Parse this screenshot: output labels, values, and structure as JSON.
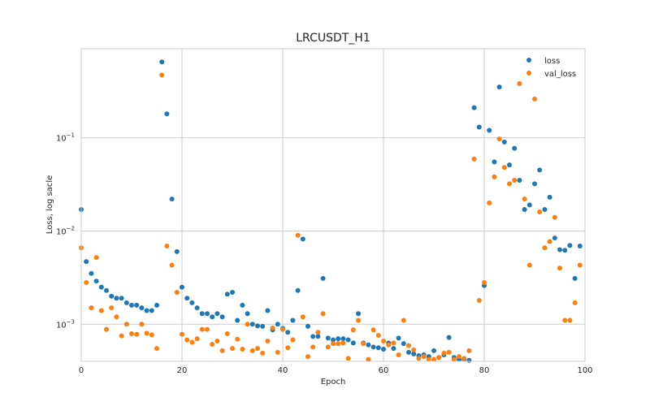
{
  "chart_data": {
    "type": "scatter",
    "title": "LRCUSDT_H1",
    "xlabel": "Epoch",
    "ylabel": "Loss, log sacle",
    "xlim": [
      0,
      100
    ],
    "ylim": [
      0.0004,
      0.9
    ],
    "yscale": "log",
    "grid": true,
    "legend_position": "top-right",
    "x_ticks": [
      0,
      20,
      40,
      60,
      80,
      100
    ],
    "x_tick_labels": [
      "0",
      "20",
      "40",
      "60",
      "80",
      "100"
    ],
    "y_ticks": [
      0.001,
      0.01,
      0.1
    ],
    "y_tick_labels": [
      {
        "base": "10",
        "exp": "−3"
      },
      {
        "base": "10",
        "exp": "−2"
      },
      {
        "base": "10",
        "exp": "−1"
      }
    ],
    "series": [
      {
        "name": "loss",
        "color": "#1f77b4",
        "x": [
          0,
          1,
          2,
          3,
          4,
          5,
          6,
          7,
          8,
          9,
          10,
          11,
          12,
          13,
          14,
          15,
          16,
          17,
          18,
          19,
          20,
          21,
          22,
          23,
          24,
          25,
          26,
          27,
          28,
          29,
          30,
          31,
          32,
          33,
          34,
          35,
          36,
          37,
          38,
          39,
          40,
          41,
          42,
          43,
          44,
          45,
          46,
          47,
          48,
          49,
          50,
          51,
          52,
          53,
          54,
          55,
          56,
          57,
          58,
          59,
          60,
          61,
          62,
          63,
          64,
          65,
          66,
          67,
          68,
          69,
          70,
          71,
          72,
          73,
          74,
          75,
          76,
          77,
          78,
          79,
          80,
          81,
          82,
          83,
          84,
          85,
          86,
          87,
          88,
          89,
          90,
          91,
          92,
          93,
          94,
          95,
          96,
          97,
          98,
          99
        ],
        "y": [
          0.017,
          0.0047,
          0.0035,
          0.0029,
          0.0025,
          0.0023,
          0.002,
          0.0019,
          0.0019,
          0.0017,
          0.0016,
          0.0016,
          0.0015,
          0.0014,
          0.0014,
          0.0016,
          0.65,
          0.18,
          0.022,
          0.006,
          0.0025,
          0.0019,
          0.0017,
          0.0015,
          0.0013,
          0.0013,
          0.0012,
          0.0013,
          0.0012,
          0.0021,
          0.0022,
          0.0011,
          0.0016,
          0.0013,
          0.001,
          0.00096,
          0.00095,
          0.0014,
          0.00087,
          0.001,
          0.0009,
          0.00082,
          0.0011,
          0.0023,
          0.0082,
          0.00095,
          0.00074,
          0.00074,
          0.0031,
          0.00071,
          0.00068,
          0.0007,
          0.0007,
          0.00068,
          0.00063,
          0.0013,
          0.00063,
          0.0006,
          0.00057,
          0.00056,
          0.00054,
          0.00063,
          0.00055,
          0.00071,
          0.00062,
          0.0005,
          0.00048,
          0.00046,
          0.00047,
          0.00045,
          0.00052,
          0.00044,
          0.00047,
          0.00072,
          0.00044,
          0.00042,
          0.00042,
          0.00041,
          0.21,
          0.13,
          0.0026,
          0.12,
          0.055,
          0.35,
          0.09,
          0.051,
          0.077,
          0.035,
          0.017,
          0.019,
          0.032,
          0.045,
          0.017,
          0.023,
          0.0084,
          0.0063,
          0.0062,
          0.007,
          0.0031,
          0.0069
        ]
      },
      {
        "name": "val_loss",
        "color": "#ff7f0e",
        "x": [
          0,
          1,
          2,
          3,
          4,
          5,
          6,
          7,
          8,
          9,
          10,
          11,
          12,
          13,
          14,
          15,
          16,
          17,
          18,
          19,
          20,
          21,
          22,
          23,
          24,
          25,
          26,
          27,
          28,
          29,
          30,
          31,
          32,
          33,
          34,
          35,
          36,
          37,
          38,
          39,
          40,
          41,
          42,
          43,
          44,
          45,
          46,
          47,
          48,
          49,
          50,
          51,
          52,
          53,
          54,
          55,
          56,
          57,
          58,
          59,
          60,
          61,
          62,
          63,
          64,
          65,
          66,
          67,
          68,
          69,
          70,
          71,
          72,
          73,
          74,
          75,
          76,
          77,
          78,
          79,
          80,
          81,
          82,
          83,
          84,
          85,
          86,
          87,
          88,
          89,
          90,
          91,
          92,
          93,
          94,
          95,
          96,
          97,
          98,
          99
        ],
        "y": [
          0.0066,
          0.0028,
          0.0015,
          0.0052,
          0.0014,
          0.00088,
          0.0015,
          0.0012,
          0.00075,
          0.001,
          0.00079,
          0.00078,
          0.001,
          0.0008,
          0.00077,
          0.00055,
          0.47,
          0.0069,
          0.0043,
          0.0022,
          0.00078,
          0.00068,
          0.00064,
          0.0007,
          0.00088,
          0.00088,
          0.00061,
          0.00066,
          0.00052,
          0.00079,
          0.00055,
          0.00069,
          0.00054,
          0.001,
          0.00052,
          0.00055,
          0.00049,
          0.00066,
          0.00091,
          0.0005,
          0.00088,
          0.00056,
          0.00068,
          0.009,
          0.0012,
          0.00045,
          0.00057,
          0.00082,
          0.0013,
          0.00057,
          0.00062,
          0.00062,
          0.00063,
          0.00043,
          0.00087,
          0.0011,
          0.00062,
          0.00042,
          0.00087,
          0.00076,
          0.00066,
          0.0006,
          0.00063,
          0.00047,
          0.0011,
          0.00059,
          0.00053,
          0.00043,
          0.00045,
          0.00042,
          0.00042,
          0.00044,
          0.00049,
          0.0005,
          0.00042,
          0.00045,
          0.00043,
          0.00052,
          0.059,
          0.0018,
          0.0028,
          0.02,
          0.038,
          0.097,
          0.048,
          0.032,
          0.035,
          0.38,
          0.022,
          0.0043,
          0.26,
          0.016,
          0.0066,
          0.0077,
          0.014,
          0.004,
          0.0011,
          0.0011,
          0.0017,
          0.0043
        ]
      }
    ]
  }
}
